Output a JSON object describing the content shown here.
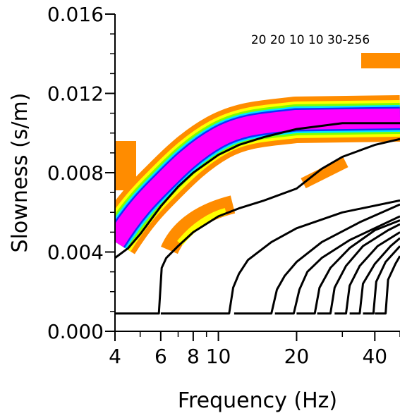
{
  "chart_data": {
    "type": "line",
    "log_x": true,
    "xlabel": "Frequency (Hz)",
    "ylabel": "Slowness (s/m)",
    "annotation": "20 20 10 10 30-256",
    "xlim": [
      4,
      50
    ],
    "ylim": [
      0,
      0.016
    ],
    "xticks": [
      4,
      6,
      8,
      10,
      20,
      40
    ],
    "x_minor_ticks": [
      5,
      7,
      9,
      30,
      50
    ],
    "yticks": [
      {
        "value": 0,
        "label": "0.000"
      },
      {
        "value": 0.004,
        "label": "0.004"
      },
      {
        "value": 0.008,
        "label": "0.008"
      },
      {
        "value": 0.012,
        "label": "0.012"
      },
      {
        "value": 0.016,
        "label": "0.016"
      }
    ],
    "y_minor_ticks": [
      0.001,
      0.002,
      0.003,
      0.005,
      0.006,
      0.007,
      0.009,
      0.01,
      0.011,
      0.013,
      0.014,
      0.015
    ],
    "series": [
      {
        "color": "#000000",
        "x": [
          4,
          4.5,
          5,
          6,
          7,
          8,
          10,
          12,
          15,
          20,
          30,
          50
        ],
        "values": [
          0.0037,
          0.0042,
          0.0049,
          0.0063,
          0.0073,
          0.008,
          0.0089,
          0.0094,
          0.0098,
          0.0102,
          0.0105,
          0.0105
        ]
      },
      {
        "color": "#000000",
        "x": [
          4,
          5.9,
          6.05,
          6.3,
          7,
          8,
          10,
          12,
          15,
          20,
          25,
          30,
          40,
          50
        ],
        "values": [
          0.0009,
          0.0009,
          0.0032,
          0.0037,
          0.0043,
          0.005,
          0.0058,
          0.0062,
          0.0066,
          0.0072,
          0.0082,
          0.0088,
          0.0094,
          0.0097
        ]
      },
      {
        "color": "#000000",
        "x": [
          6,
          11,
          11.4,
          12,
          13,
          16,
          20,
          30,
          50
        ],
        "values": [
          0.0009,
          0.0009,
          0.0022,
          0.0029,
          0.0036,
          0.0045,
          0.0052,
          0.006,
          0.0066
        ]
      },
      {
        "color": "#000000",
        "x": [
          11.5,
          16,
          16.8,
          18,
          20,
          25,
          35,
          50
        ],
        "values": [
          0.0009,
          0.0009,
          0.0021,
          0.0028,
          0.0035,
          0.0045,
          0.0055,
          0.0064
        ]
      },
      {
        "color": "#000000",
        "x": [
          16.5,
          19.5,
          20.5,
          22,
          25,
          32,
          50
        ],
        "values": [
          0.0009,
          0.0009,
          0.0021,
          0.003,
          0.0037,
          0.0046,
          0.0058
        ]
      },
      {
        "color": "#000000",
        "x": [
          20,
          23.5,
          24.5,
          27,
          32,
          40,
          50
        ],
        "values": [
          0.0009,
          0.0009,
          0.0022,
          0.0032,
          0.0042,
          0.0051,
          0.0056
        ]
      },
      {
        "color": "#000000",
        "x": [
          24,
          27,
          28,
          31,
          36,
          45,
          50
        ],
        "values": [
          0.0009,
          0.0009,
          0.0022,
          0.0033,
          0.0043,
          0.0051,
          0.0054
        ]
      },
      {
        "color": "#000000",
        "x": [
          28,
          31,
          32,
          35,
          41,
          50
        ],
        "values": [
          0.0009,
          0.0009,
          0.0023,
          0.0033,
          0.0043,
          0.005
        ]
      },
      {
        "color": "#000000",
        "x": [
          32,
          35,
          36,
          40,
          46,
          50
        ],
        "values": [
          0.0009,
          0.0009,
          0.0024,
          0.0034,
          0.0043,
          0.0047
        ]
      },
      {
        "color": "#000000",
        "x": [
          36,
          39.5,
          40.5,
          44,
          50
        ],
        "values": [
          0.0009,
          0.0009,
          0.0025,
          0.0035,
          0.0043
        ]
      },
      {
        "color": "#000000",
        "x": [
          40,
          44,
          45,
          48,
          50
        ],
        "values": [
          0.0009,
          0.0009,
          0.0026,
          0.0034,
          0.0038
        ]
      }
    ]
  }
}
